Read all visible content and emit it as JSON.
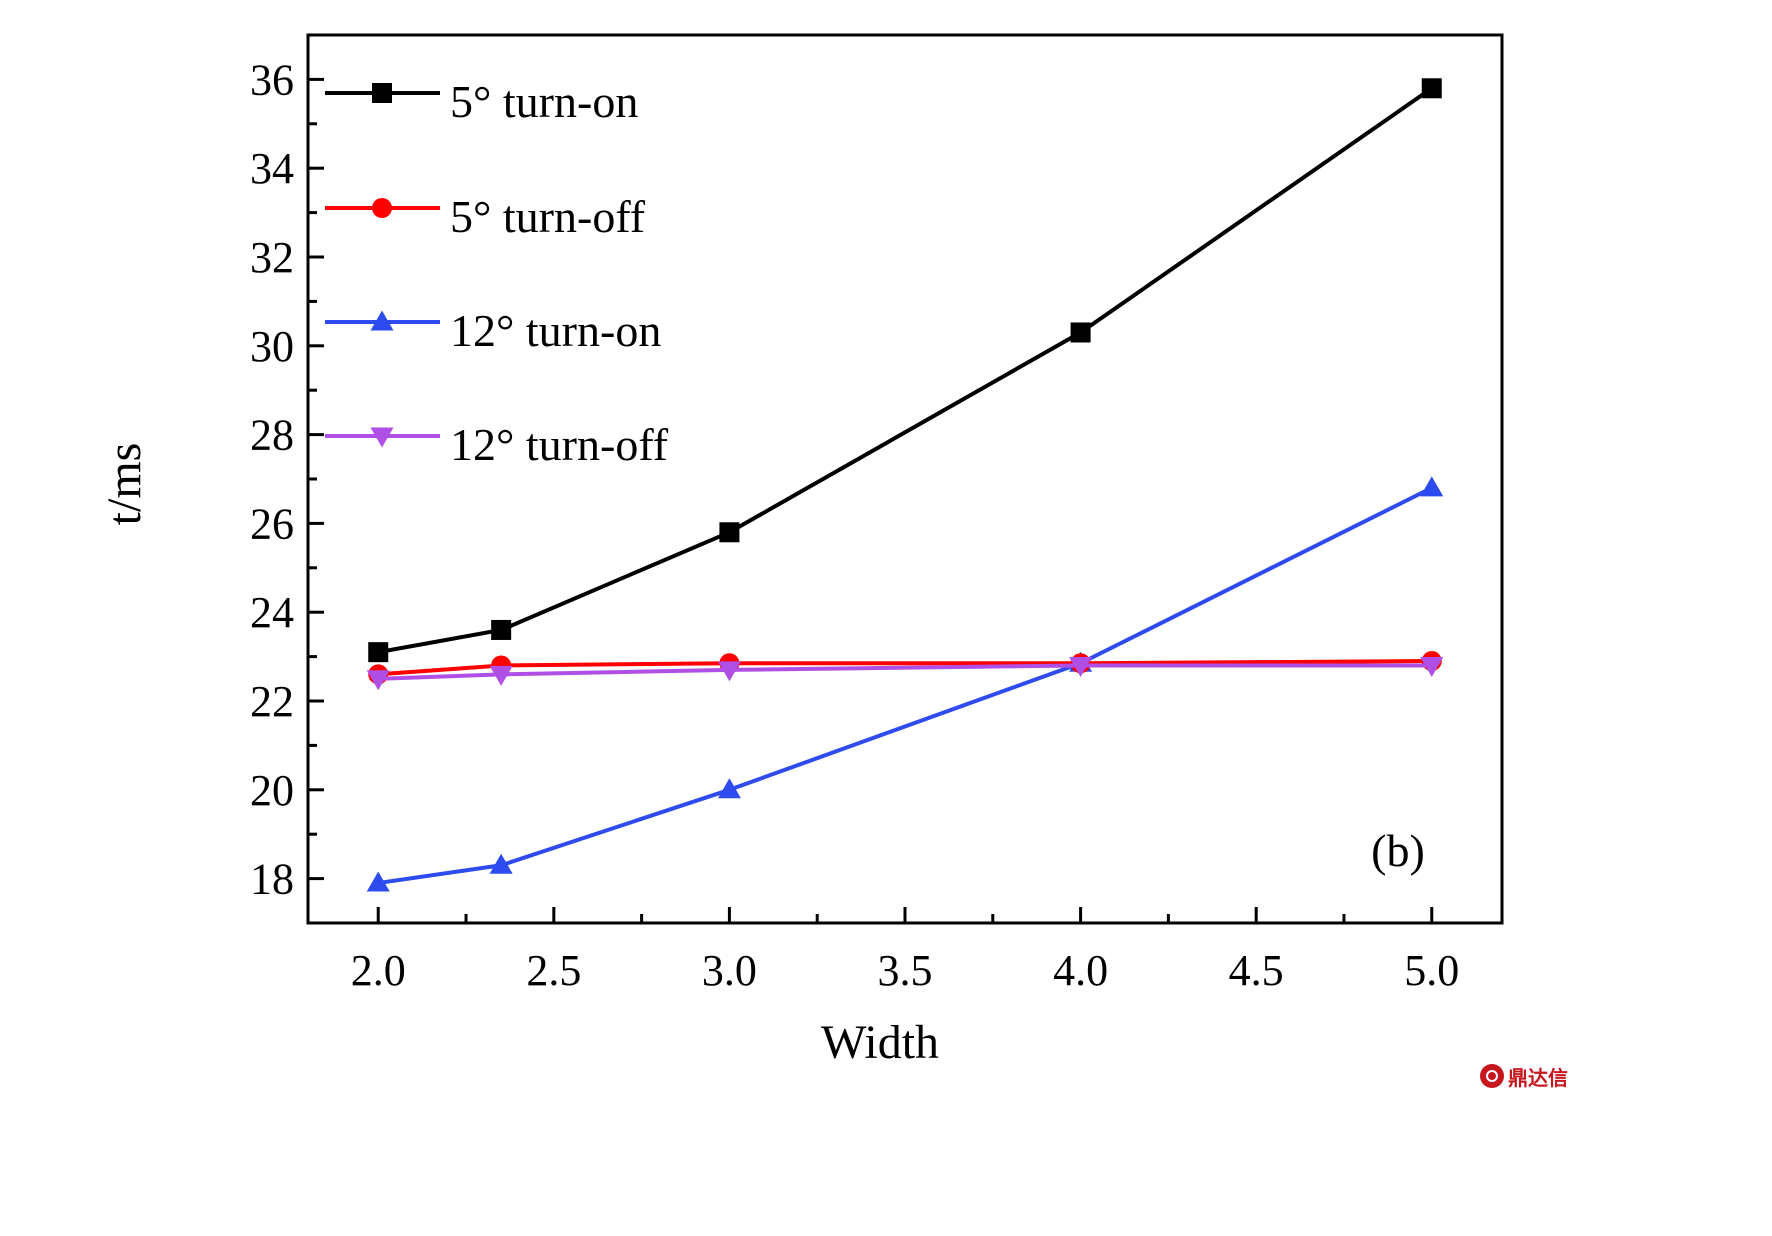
{
  "chart_data": {
    "type": "line",
    "xlabel": "Width",
    "ylabel": "t/ms",
    "panel_label": "(b)",
    "xlim": [
      1.8,
      5.2
    ],
    "ylim": [
      17,
      37
    ],
    "x_ticks": [
      "2.0",
      "2.5",
      "3.0",
      "3.5",
      "4.0",
      "4.5",
      "5.0"
    ],
    "x_tick_values": [
      2.0,
      2.5,
      3.0,
      3.5,
      4.0,
      4.5,
      5.0
    ],
    "y_ticks": [
      "18",
      "20",
      "22",
      "24",
      "26",
      "28",
      "30",
      "32",
      "34",
      "36"
    ],
    "y_tick_values": [
      18,
      20,
      22,
      24,
      26,
      28,
      30,
      32,
      34,
      36
    ],
    "grid": false,
    "legend_position": "top-left",
    "x": [
      2.0,
      2.35,
      3.0,
      4.0,
      5.0
    ],
    "series": [
      {
        "name": "5°  turn-on",
        "values": [
          23.1,
          23.6,
          25.8,
          30.3,
          35.8
        ],
        "color": "#000000",
        "marker": "square"
      },
      {
        "name": "5°  turn-off",
        "values": [
          22.6,
          22.8,
          22.85,
          22.85,
          22.9
        ],
        "color": "#ff0000",
        "marker": "circle"
      },
      {
        "name": "12°  turn-on",
        "values": [
          17.9,
          18.3,
          20.0,
          22.85,
          26.8
        ],
        "color": "#2e4bf0",
        "marker": "triangle-up"
      },
      {
        "name": "12°  turn-off",
        "values": [
          22.5,
          22.6,
          22.7,
          22.8,
          22.8
        ],
        "color": "#b04fe6",
        "marker": "triangle-down"
      }
    ]
  },
  "watermark": {
    "text": "鼎达信",
    "logo": "circle-logo-icon",
    "color": "#c8161d"
  }
}
